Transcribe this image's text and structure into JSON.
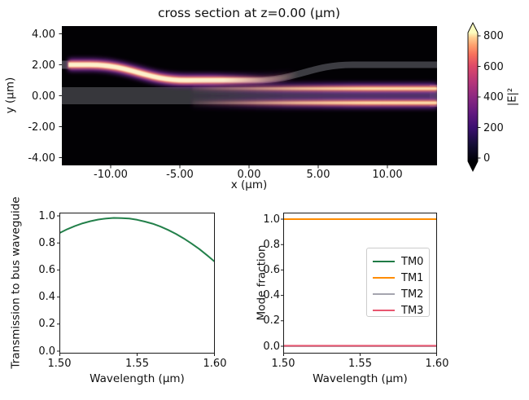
{
  "figure": {
    "kind": "matplotlib-style simulation figure",
    "background": "#ffffff",
    "text_color": "#111111"
  },
  "chart_data": [
    {
      "id": "field_cross_section",
      "type": "heatmap",
      "title": "cross section at z=0.00 (μm)",
      "xlabel": "x (μm)",
      "ylabel": "y (μm)",
      "xlim": [
        -13.5,
        13.6
      ],
      "ylim": [
        -4.5,
        4.5
      ],
      "xtick_labels": [
        "-10.00",
        "-5.00",
        "0.00",
        "5.00",
        "10.00"
      ],
      "ytick_labels": [
        "4.00",
        "2.00",
        "0.00",
        "-2.00",
        "-4.00"
      ],
      "colorbar": {
        "label": "|E|²",
        "tick_labels": [
          "800",
          "600",
          "400",
          "200",
          "0"
        ],
        "range": [
          0,
          800
        ],
        "extend": "both",
        "colormap": "magma",
        "colormap_stops": [
          {
            "offset": 0.0,
            "color": "#000004"
          },
          {
            "offset": 0.13,
            "color": "#140e36"
          },
          {
            "offset": 0.26,
            "color": "#3b0f70"
          },
          {
            "offset": 0.38,
            "color": "#641a80"
          },
          {
            "offset": 0.5,
            "color": "#8c2981"
          },
          {
            "offset": 0.62,
            "color": "#b73779"
          },
          {
            "offset": 0.74,
            "color": "#de4968"
          },
          {
            "offset": 0.83,
            "color": "#f7705c"
          },
          {
            "offset": 0.9,
            "color": "#fe9f6d"
          },
          {
            "offset": 0.96,
            "color": "#fece91"
          },
          {
            "offset": 1.0,
            "color": "#fcfdbf"
          }
        ]
      },
      "structures": {
        "bus_waveguide_band_y_um": [
          -0.55,
          0.55
        ],
        "access_waveguide_centerline_um": [
          [
            -13.5,
            2.0
          ],
          [
            -11.5,
            2.0
          ],
          [
            -4.5,
            1.0
          ],
          [
            0.5,
            1.0
          ],
          [
            7.5,
            2.0
          ],
          [
            13.5,
            2.0
          ]
        ]
      },
      "field_description": "Bright fundamental mode enters the upper access waveguide at left (y≈2 μm), S-bends down to y≈1 μm, couples into the bus waveguide where two bright lobes at y≈±0.45 μm grow toward the right edge; the upper arm continues dark (gray) back up to y≈2 μm."
    },
    {
      "id": "transmission",
      "type": "line",
      "xlabel": "Wavelength (μm)",
      "ylabel": "Transmission to bus waveguide",
      "xlim": [
        1.5,
        1.6
      ],
      "ylim": [
        0.0,
        1.0
      ],
      "xtick_labels": [
        "1.50",
        "1.55",
        "1.60"
      ],
      "ytick_labels": [
        "1.0",
        "0.8",
        "0.6",
        "0.4",
        "0.2",
        "0.0"
      ],
      "x": [
        1.5,
        1.505,
        1.51,
        1.515,
        1.52,
        1.525,
        1.53,
        1.535,
        1.54,
        1.545,
        1.55,
        1.555,
        1.56,
        1.565,
        1.57,
        1.575,
        1.58,
        1.585,
        1.59,
        1.595,
        1.6
      ],
      "series": [
        {
          "name": "transmission",
          "color": "#23804a",
          "values": [
            0.873,
            0.901,
            0.925,
            0.945,
            0.961,
            0.973,
            0.981,
            0.985,
            0.984,
            0.98,
            0.971,
            0.958,
            0.942,
            0.921,
            0.896,
            0.867,
            0.833,
            0.796,
            0.755,
            0.709,
            0.66
          ]
        }
      ],
      "grid": false,
      "legend": null
    },
    {
      "id": "mode_fraction",
      "type": "line",
      "xlabel": "Wavelength (μm)",
      "ylabel": "Mode fraction",
      "xlim": [
        1.5,
        1.6
      ],
      "ylim": [
        0.0,
        1.0
      ],
      "xtick_labels": [
        "1.50",
        "1.55",
        "1.60"
      ],
      "ytick_labels": [
        "1.0",
        "0.8",
        "0.6",
        "0.4",
        "0.2",
        "0.0"
      ],
      "x": [
        1.5,
        1.6
      ],
      "series": [
        {
          "name": "TM0",
          "color": "#1f7a45",
          "values": [
            0.0,
            0.0
          ]
        },
        {
          "name": "TM1",
          "color": "#ff8c00",
          "values": [
            1.0,
            1.0
          ]
        },
        {
          "name": "TM2",
          "color": "#a5a5af",
          "values": [
            0.0,
            0.0
          ]
        },
        {
          "name": "TM3",
          "color": "#e8566f",
          "values": [
            0.004,
            0.004
          ]
        }
      ],
      "grid": false,
      "legend": {
        "position": "center right",
        "labels": [
          "TM0",
          "TM1",
          "TM2",
          "TM3"
        ]
      }
    }
  ]
}
